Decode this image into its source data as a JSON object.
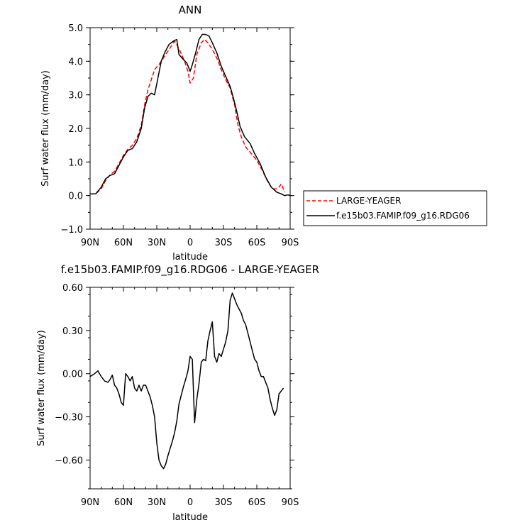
{
  "chart_data": [
    {
      "type": "line",
      "title": "ANN",
      "xlabel": "latitude",
      "ylabel": "Surf water flux (mm/day)",
      "xlim": [
        -90,
        90
      ],
      "ylim": [
        -1.0,
        5.0
      ],
      "x_ticks": [
        "90N",
        "60N",
        "30N",
        "0",
        "30S",
        "60S",
        "90S"
      ],
      "y_ticks": [
        "-1.0",
        "0.0",
        "1.0",
        "2.0",
        "3.0",
        "4.0",
        "5.0"
      ],
      "legend_position": "right",
      "series": [
        {
          "name": "LARGE-YEAGER",
          "color": "#ff0000",
          "style": "dashed",
          "x": [
            -90,
            -85,
            -80,
            -76,
            -72,
            -68,
            -64,
            -60,
            -56,
            -52,
            -48,
            -44,
            -41,
            -38,
            -35,
            -32,
            -28,
            -24,
            -20,
            -17,
            -14,
            -12,
            -9,
            -5,
            -2,
            0,
            3,
            6,
            10,
            13,
            16,
            20,
            24,
            28,
            32,
            36,
            40,
            43,
            46,
            50,
            55,
            60,
            65,
            70,
            74,
            78,
            80,
            82,
            85
          ],
          "y": [
            0.05,
            0.05,
            0.2,
            0.45,
            0.62,
            0.72,
            0.95,
            1.2,
            1.38,
            1.5,
            1.7,
            2.1,
            2.7,
            3.15,
            3.45,
            3.75,
            3.9,
            4.1,
            4.3,
            4.45,
            4.6,
            4.5,
            4.3,
            4.0,
            3.7,
            3.35,
            3.5,
            4.2,
            4.55,
            4.65,
            4.55,
            4.35,
            4.1,
            3.75,
            3.45,
            3.2,
            2.7,
            2.1,
            1.75,
            1.45,
            1.25,
            1.05,
            0.75,
            0.4,
            0.2,
            0.2,
            0.25,
            0.35,
            0.1
          ]
        },
        {
          "name": "f.e15b03.FAMIP.f09_g16.RDG06",
          "color": "#000000",
          "style": "solid",
          "x": [
            -90,
            -85,
            -80,
            -76,
            -72,
            -68,
            -64,
            -60,
            -56,
            -52,
            -48,
            -44,
            -41,
            -38,
            -35,
            -32,
            -29,
            -26,
            -23,
            -19,
            -15,
            -12,
            -10,
            -6,
            -3,
            0,
            2,
            5,
            8,
            11,
            14,
            17,
            20,
            24,
            28,
            32,
            36,
            39,
            42,
            45,
            49,
            54,
            58,
            63,
            68,
            73,
            78,
            82,
            85,
            88,
            90
          ],
          "y": [
            0.05,
            0.05,
            0.25,
            0.5,
            0.6,
            0.65,
            0.9,
            1.15,
            1.35,
            1.4,
            1.6,
            2.0,
            2.6,
            2.95,
            3.05,
            3.0,
            3.5,
            4.0,
            4.25,
            4.5,
            4.6,
            4.65,
            4.2,
            4.05,
            3.95,
            3.7,
            3.9,
            4.25,
            4.65,
            4.8,
            4.8,
            4.75,
            4.55,
            4.25,
            3.85,
            3.55,
            3.25,
            2.9,
            2.5,
            2.05,
            1.75,
            1.55,
            1.25,
            0.95,
            0.55,
            0.25,
            0.1,
            0.05,
            0.0,
            0.02,
            0.0
          ]
        }
      ]
    },
    {
      "type": "line",
      "title": "f.e15b03.FAMIP.f09_g16.RDG06 - LARGE-YEAGER",
      "xlabel": "latitude",
      "ylabel": "Surf water flux (mm/day)",
      "xlim": [
        -90,
        90
      ],
      "ylim": [
        -0.8,
        0.6
      ],
      "x_ticks": [
        "90N",
        "60N",
        "30N",
        "0",
        "30S",
        "60S",
        "90S"
      ],
      "y_ticks": [
        "-0.60",
        "-0.30",
        "0.00",
        "0.30",
        "0.60"
      ],
      "series": [
        {
          "color": "#000000",
          "style": "solid",
          "x": [
            -90,
            -86,
            -83,
            -80,
            -77,
            -74,
            -72,
            -70,
            -68,
            -66,
            -64,
            -62,
            -60,
            -58,
            -56,
            -54,
            -52,
            -50,
            -48,
            -46,
            -44,
            -42,
            -40,
            -38,
            -36,
            -34,
            -32,
            -30,
            -28,
            -26,
            -24,
            -22,
            -20,
            -18,
            -16,
            -14,
            -12,
            -10,
            -8,
            -6,
            -4,
            -2,
            0,
            2,
            4,
            6,
            8,
            10,
            12,
            14,
            16,
            18,
            20,
            22,
            24,
            26,
            28,
            30,
            32,
            34,
            36,
            38,
            40,
            42,
            44,
            46,
            48,
            50,
            52,
            54,
            56,
            58,
            60,
            62,
            64,
            66,
            68,
            70,
            72,
            74,
            76,
            78,
            80,
            82,
            84
          ],
          "y": [
            -0.02,
            0.0,
            0.02,
            -0.02,
            -0.05,
            -0.06,
            -0.04,
            -0.01,
            -0.08,
            -0.1,
            -0.14,
            -0.2,
            -0.22,
            0.0,
            -0.02,
            -0.05,
            -0.02,
            -0.1,
            -0.12,
            -0.08,
            -0.12,
            -0.08,
            -0.08,
            -0.12,
            -0.16,
            -0.22,
            -0.3,
            -0.48,
            -0.6,
            -0.64,
            -0.66,
            -0.63,
            -0.57,
            -0.52,
            -0.47,
            -0.41,
            -0.33,
            -0.21,
            -0.15,
            -0.09,
            -0.04,
            0.02,
            0.12,
            0.1,
            -0.34,
            -0.18,
            -0.07,
            0.08,
            0.1,
            0.09,
            0.23,
            0.3,
            0.36,
            0.12,
            0.08,
            0.14,
            0.12,
            0.17,
            0.22,
            0.3,
            0.51,
            0.56,
            0.52,
            0.48,
            0.45,
            0.42,
            0.37,
            0.34,
            0.28,
            0.22,
            0.16,
            0.1,
            0.08,
            0.02,
            -0.02,
            -0.02,
            -0.06,
            -0.1,
            -0.18,
            -0.24,
            -0.29,
            -0.25,
            -0.14,
            -0.12,
            -0.1
          ]
        }
      ]
    }
  ]
}
